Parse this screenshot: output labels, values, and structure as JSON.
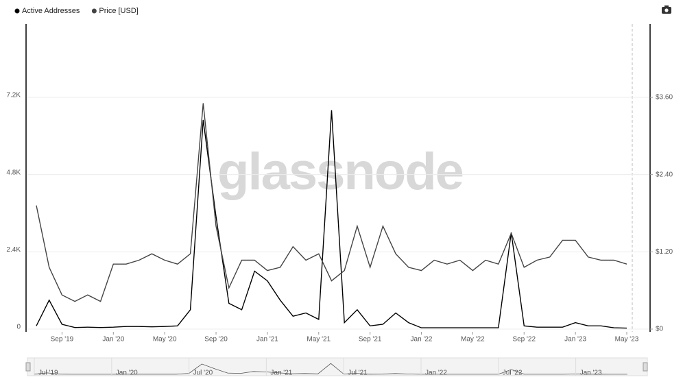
{
  "chart_data": {
    "type": "line",
    "watermark": "glassnode",
    "x": [
      "2019-07",
      "2019-08",
      "2019-09",
      "2019-10",
      "2019-11",
      "2019-12",
      "2020-01",
      "2020-02",
      "2020-03",
      "2020-04",
      "2020-05",
      "2020-06",
      "2020-07",
      "2020-08",
      "2020-09",
      "2020-10",
      "2020-11",
      "2020-12",
      "2021-01",
      "2021-02",
      "2021-03",
      "2021-04",
      "2021-05",
      "2021-06",
      "2021-07",
      "2021-08",
      "2021-09",
      "2021-10",
      "2021-11",
      "2021-12",
      "2022-01",
      "2022-02",
      "2022-03",
      "2022-04",
      "2022-05",
      "2022-06",
      "2022-07",
      "2022-08",
      "2022-09",
      "2022-10",
      "2022-11",
      "2022-12",
      "2023-01",
      "2023-02",
      "2023-03",
      "2023-04",
      "2023-05"
    ],
    "series": [
      {
        "name": "Active Addresses",
        "color": "#000000",
        "axis": "y",
        "values": [
          100,
          900,
          150,
          50,
          60,
          50,
          60,
          80,
          80,
          70,
          80,
          100,
          600,
          6500,
          3500,
          800,
          600,
          1800,
          1500,
          900,
          400,
          500,
          300,
          6800,
          200,
          600,
          100,
          150,
          500,
          200,
          40,
          40,
          40,
          40,
          40,
          40,
          40,
          3000,
          100,
          60,
          60,
          60,
          200,
          100,
          100,
          40,
          30
        ]
      },
      {
        "name": "Price [USD]",
        "color": "#444444",
        "axis": "y2",
        "values": [
          1.92,
          0.96,
          0.53,
          0.43,
          0.53,
          0.43,
          1.01,
          1.01,
          1.07,
          1.17,
          1.07,
          1.01,
          1.17,
          3.51,
          1.6,
          0.64,
          1.07,
          1.07,
          0.91,
          0.96,
          1.28,
          1.07,
          1.17,
          0.75,
          0.91,
          1.6,
          0.96,
          1.6,
          1.17,
          0.96,
          0.91,
          1.07,
          1.01,
          1.07,
          0.91,
          1.07,
          1.01,
          1.49,
          0.96,
          1.07,
          1.12,
          1.38,
          1.38,
          1.12,
          1.07,
          1.07,
          1.01
        ]
      }
    ],
    "xlim": [
      "2019-07",
      "2023-05"
    ],
    "xticks": [
      {
        "value": "2019-09",
        "label": "Sep '19"
      },
      {
        "value": "2020-01",
        "label": "Jan '20"
      },
      {
        "value": "2020-05",
        "label": "May '20"
      },
      {
        "value": "2020-09",
        "label": "Sep '20"
      },
      {
        "value": "2021-01",
        "label": "Jan '21"
      },
      {
        "value": "2021-05",
        "label": "May '21"
      },
      {
        "value": "2021-09",
        "label": "Sep '21"
      },
      {
        "value": "2022-01",
        "label": "Jan '22"
      },
      {
        "value": "2022-05",
        "label": "May '22"
      },
      {
        "value": "2022-09",
        "label": "Sep '22"
      },
      {
        "value": "2023-01",
        "label": "Jan '23"
      },
      {
        "value": "2023-05",
        "label": "May '23"
      }
    ],
    "ylim": [
      0,
      9480
    ],
    "yticks": [
      0,
      {
        "value": 2400,
        "label": "2.4K"
      },
      {
        "value": 4800,
        "label": "4.8K"
      },
      {
        "value": 7200,
        "label": "7.2K"
      }
    ],
    "y2lim": [
      0,
      4.74
    ],
    "y2ticks": [
      {
        "value": 0,
        "label": "$0"
      },
      {
        "value": 1.2,
        "label": "$1.20"
      },
      {
        "value": 2.4,
        "label": "$2.40"
      },
      {
        "value": 3.6,
        "label": "$3.60"
      }
    ],
    "grid": true,
    "legend": "top-left",
    "navigator_ticks": [
      {
        "value": "2019-07",
        "label": "Jul '19"
      },
      {
        "value": "2020-01",
        "label": "Jan '20"
      },
      {
        "value": "2020-07",
        "label": "Jul '20"
      },
      {
        "value": "2021-01",
        "label": "Jan '21"
      },
      {
        "value": "2021-07",
        "label": "Jul '21"
      },
      {
        "value": "2022-01",
        "label": "Jan '22"
      },
      {
        "value": "2022-07",
        "label": "Jul '22"
      },
      {
        "value": "2023-01",
        "label": "Jan '23"
      }
    ]
  }
}
